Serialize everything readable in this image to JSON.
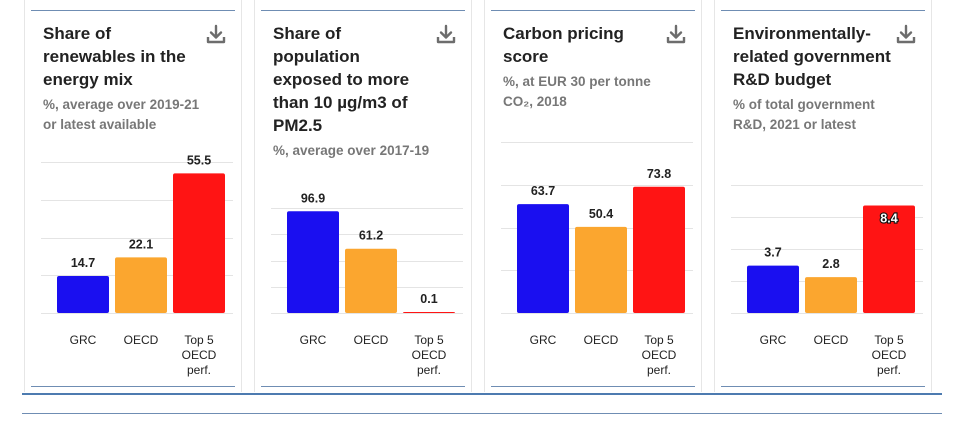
{
  "colors": {
    "grc": "#1a0ff0",
    "oecd": "#fba62f",
    "top5": "#ff1414",
    "grid": "#e4e4e4"
  },
  "download_icon": "download-icon",
  "chart_data": [
    {
      "type": "bar",
      "title": "Share of renewables in the energy mix",
      "subtitle": "%, average over 2019-21 or latest available",
      "categories": [
        "GRC",
        "OECD",
        "Top 5 OECD perf."
      ],
      "values": [
        14.7,
        22.1,
        55.5
      ],
      "value_labels": [
        "14.7",
        "22.1",
        "55.5"
      ],
      "ylim": [
        0,
        60
      ],
      "grid": true
    },
    {
      "type": "bar",
      "title": "Share of population exposed to more than 10 µg/m3 of PM2.5",
      "subtitle": "%, average over 2017-19",
      "categories": [
        "GRC",
        "OECD",
        "Top 5 OECD perf."
      ],
      "values": [
        96.9,
        61.2,
        0.1
      ],
      "value_labels": [
        "96.9",
        "61.2",
        "0.1"
      ],
      "ylim": [
        0,
        100
      ],
      "grid": true
    },
    {
      "type": "bar",
      "title": "Carbon pricing score",
      "subtitle": "%, at EUR 30 per tonne CO₂, 2018",
      "categories": [
        "GRC",
        "OECD",
        "Top 5 OECD perf."
      ],
      "values": [
        63.7,
        50.4,
        73.8
      ],
      "value_labels": [
        "63.7",
        "50.4",
        "73.8"
      ],
      "ylim": [
        0,
        100
      ],
      "grid": true
    },
    {
      "type": "bar",
      "title": "Environmentally-related government R&D budget",
      "subtitle": "% of total government R&D, 2021 or latest",
      "categories": [
        "GRC",
        "OECD",
        "Top 5 OECD perf."
      ],
      "values": [
        3.7,
        2.8,
        8.4
      ],
      "value_labels": [
        "3.7",
        "2.8",
        "8.4"
      ],
      "ylim": [
        0,
        10
      ],
      "grid": true
    }
  ]
}
